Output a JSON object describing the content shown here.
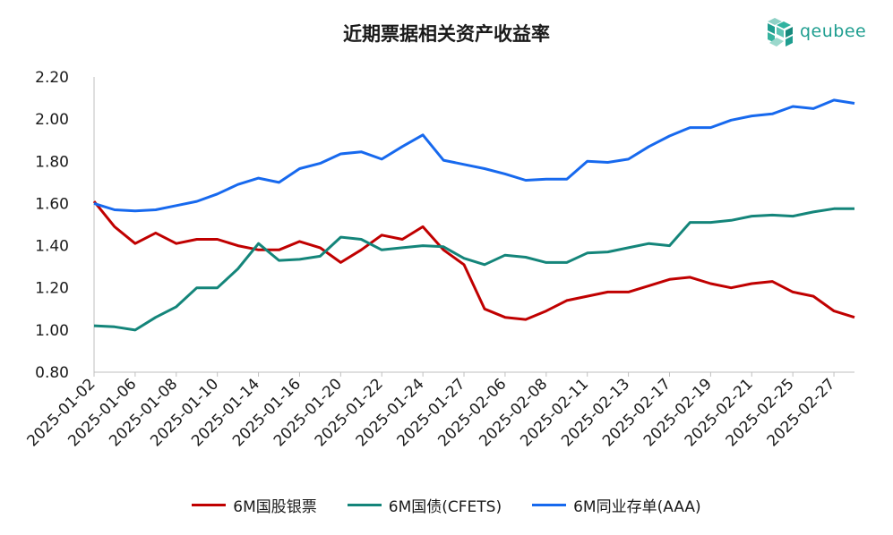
{
  "chart_data": {
    "type": "line",
    "title": "近期票据相关资产收益率",
    "ylim": [
      0.8,
      2.2
    ],
    "yticks": [
      "0.80",
      "1.00",
      "1.20",
      "1.40",
      "1.60",
      "1.80",
      "2.00",
      "2.20"
    ],
    "x": [
      "2025-01-02",
      "2025-01-03",
      "2025-01-06",
      "2025-01-07",
      "2025-01-08",
      "2025-01-09",
      "2025-01-10",
      "2025-01-13",
      "2025-01-14",
      "2025-01-15",
      "2025-01-16",
      "2025-01-17",
      "2025-01-20",
      "2025-01-21",
      "2025-01-22",
      "2025-01-23",
      "2025-01-24",
      "2025-01-26",
      "2025-01-27",
      "2025-02-05",
      "2025-02-06",
      "2025-02-07",
      "2025-02-08",
      "2025-02-10",
      "2025-02-11",
      "2025-02-12",
      "2025-02-13",
      "2025-02-14",
      "2025-02-17",
      "2025-02-18",
      "2025-02-19",
      "2025-02-20",
      "2025-02-21",
      "2025-02-24",
      "2025-02-25",
      "2025-02-26",
      "2025-02-27",
      "2025-02-28"
    ],
    "xticks": [
      "2025-01-02",
      "2025-01-06",
      "2025-01-08",
      "2025-01-10",
      "2025-01-14",
      "2025-01-16",
      "2025-01-20",
      "2025-01-22",
      "2025-01-24",
      "2025-01-27",
      "2025-02-06",
      "2025-02-08",
      "2025-02-11",
      "2025-02-13",
      "2025-02-17",
      "2025-02-19",
      "2025-02-21",
      "2025-02-25",
      "2025-02-27"
    ],
    "grid": false,
    "legend_position": "bottom",
    "series": [
      {
        "name": "6M国股银票",
        "color": "#c00000",
        "values": [
          1.61,
          1.49,
          1.41,
          1.46,
          1.41,
          1.43,
          1.43,
          1.4,
          1.38,
          1.38,
          1.42,
          1.39,
          1.32,
          1.38,
          1.45,
          1.43,
          1.49,
          1.38,
          1.31,
          1.1,
          1.06,
          1.05,
          1.09,
          1.14,
          1.16,
          1.18,
          1.18,
          1.21,
          1.24,
          1.25,
          1.22,
          1.2,
          1.22,
          1.23,
          1.18,
          1.16,
          1.09,
          1.06
        ]
      },
      {
        "name": "6M国债(CFETS)",
        "color": "#14857a",
        "values": [
          1.02,
          1.015,
          1.0,
          1.06,
          1.11,
          1.2,
          1.2,
          1.29,
          1.41,
          1.33,
          1.335,
          1.35,
          1.44,
          1.43,
          1.38,
          1.39,
          1.4,
          1.395,
          1.34,
          1.31,
          1.355,
          1.345,
          1.32,
          1.32,
          1.365,
          1.37,
          1.39,
          1.41,
          1.4,
          1.51,
          1.51,
          1.52,
          1.54,
          1.545,
          1.54,
          1.56,
          1.575,
          1.575
        ]
      },
      {
        "name": "6M同业存单(AAA)",
        "color": "#1769ee",
        "values": [
          1.6,
          1.57,
          1.565,
          1.57,
          1.59,
          1.61,
          1.645,
          1.69,
          1.72,
          1.7,
          1.765,
          1.79,
          1.835,
          1.845,
          1.81,
          1.87,
          1.925,
          1.805,
          1.785,
          1.765,
          1.74,
          1.71,
          1.715,
          1.715,
          1.8,
          1.795,
          1.81,
          1.87,
          1.92,
          1.96,
          1.96,
          1.995,
          2.015,
          2.025,
          2.06,
          2.05,
          2.09,
          2.075
        ]
      }
    ]
  },
  "logo": {
    "text": "qeubee"
  }
}
